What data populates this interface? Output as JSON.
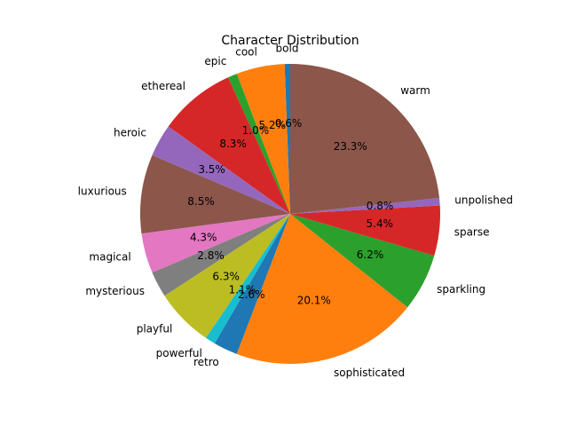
{
  "chart_data": {
    "type": "pie",
    "title": "Character Distribution",
    "start_angle_deg": 90,
    "direction": "counterclockwise",
    "slices": [
      {
        "label": "bold",
        "value": 0.6,
        "pct_label": "0.6%",
        "color": "#1f77b4"
      },
      {
        "label": "cool",
        "value": 5.2,
        "pct_label": "5.2%",
        "color": "#ff7f0e"
      },
      {
        "label": "epic",
        "value": 1.0,
        "pct_label": "1.0%",
        "color": "#2ca02c"
      },
      {
        "label": "ethereal",
        "value": 8.3,
        "pct_label": "8.3%",
        "color": "#d62728"
      },
      {
        "label": "heroic",
        "value": 3.5,
        "pct_label": "3.5%",
        "color": "#9467bd"
      },
      {
        "label": "luxurious",
        "value": 8.5,
        "pct_label": "8.5%",
        "color": "#8c564b"
      },
      {
        "label": "magical",
        "value": 4.3,
        "pct_label": "4.3%",
        "color": "#e377c2"
      },
      {
        "label": "mysterious",
        "value": 2.8,
        "pct_label": "2.8%",
        "color": "#7f7f7f"
      },
      {
        "label": "playful",
        "value": 6.3,
        "pct_label": "6.3%",
        "color": "#bcbd22"
      },
      {
        "label": "powerful",
        "value": 1.1,
        "pct_label": "1.1%",
        "color": "#17becf"
      },
      {
        "label": "retro",
        "value": 2.6,
        "pct_label": "2.6%",
        "color": "#1f77b4"
      },
      {
        "label": "sophisticated",
        "value": 20.1,
        "pct_label": "20.1%",
        "color": "#ff7f0e"
      },
      {
        "label": "sparkling",
        "value": 6.2,
        "pct_label": "6.2%",
        "color": "#2ca02c"
      },
      {
        "label": "sparse",
        "value": 5.4,
        "pct_label": "5.4%",
        "color": "#d62728"
      },
      {
        "label": "unpolished",
        "value": 0.8,
        "pct_label": "0.8%",
        "color": "#9467bd"
      },
      {
        "label": "warm",
        "value": 23.3,
        "pct_label": "23.3%",
        "color": "#8c564b"
      }
    ]
  }
}
